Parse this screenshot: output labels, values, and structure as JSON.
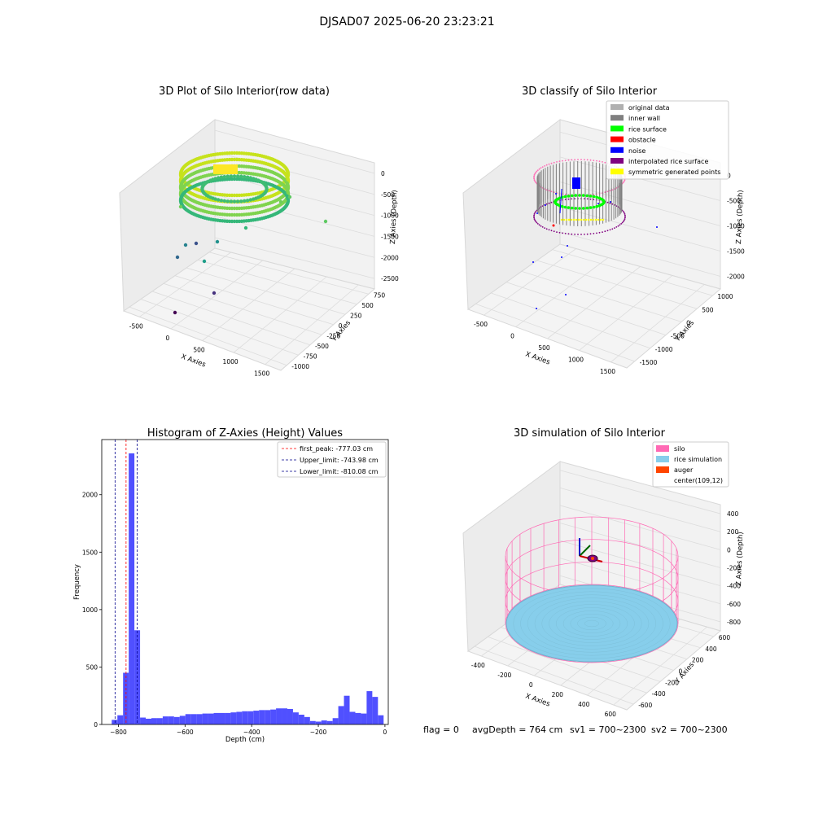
{
  "suptitle": "DJSAD07 2025-06-20 23:23:21",
  "footer": {
    "flag": "flag = 0",
    "avg_depth": "avgDepth = 764 cm",
    "sv1": "sv1 = 700~2300",
    "sv2": "sv2 = 700~2300"
  },
  "colors": {
    "original_data": "#b0b0b0",
    "inner_wall": "#808080",
    "rice_surface": "#00ff00",
    "obstacle": "#ff0000",
    "noise": "#0000ff",
    "interpolated_rice_surface": "#800080",
    "symmetric_generated_points": "#ffff00",
    "silo": "#ff69b4",
    "rice_simulation": "#87ceeb",
    "auger": "#ff4500",
    "hist_bar": "#5050ff",
    "first_peak": "#ff0000",
    "limit": "#00008b"
  },
  "chart_data": [
    {
      "type": "scatter",
      "title": "3D Plot of Silo Interior(row data)",
      "xlabel": "X Axies",
      "ylabel": "Y Axies",
      "zlabel": "Z Axies (Depth)",
      "xticks": [
        "-500",
        "0",
        "500",
        "1000",
        "1500"
      ],
      "yticks": [
        "-1000",
        "-750",
        "-500",
        "-250",
        "0",
        "250",
        "500",
        "750"
      ],
      "zticks": [
        "0",
        "-500",
        "-1000",
        "-1500",
        "-2000",
        "-2500"
      ]
    },
    {
      "type": "scatter",
      "title": "3D classify of Silo Interior",
      "xlabel": "X Axies",
      "ylabel": "Y Axies",
      "zlabel": "Z Axies (Depth)",
      "xticks": [
        "-500",
        "0",
        "500",
        "1000",
        "1500"
      ],
      "yticks": [
        "-1500",
        "-1000",
        "-500",
        "0",
        "500",
        "1000"
      ],
      "zticks": [
        "0",
        "-500",
        "-1000",
        "-1500",
        "-2000"
      ],
      "legend": [
        "original data",
        "inner wall",
        "rice surface",
        "obstacle",
        "noise",
        "interpolated rice surface",
        "symmetric generated points"
      ]
    },
    {
      "type": "bar",
      "title": "Histogram of Z-Axies (Height) Values",
      "xlabel": "Depth (cm)",
      "ylabel": "Frequency",
      "xlim": [
        -850,
        10
      ],
      "ylim": [
        0,
        2480
      ],
      "xticks": [
        -800,
        -600,
        -400,
        -200,
        0
      ],
      "yticks": [
        0,
        500,
        1000,
        1500,
        2000
      ],
      "bin_width": 17,
      "bin_starts": [
        -820,
        -803,
        -786,
        -769,
        -752,
        -735,
        -718,
        -701,
        -684,
        -667,
        -650,
        -633,
        -616,
        -599,
        -582,
        -565,
        -548,
        -531,
        -514,
        -497,
        -480,
        -463,
        -446,
        -429,
        -412,
        -395,
        -378,
        -361,
        -344,
        -327,
        -310,
        -293,
        -276,
        -259,
        -242,
        -225,
        -208,
        -191,
        -174,
        -157,
        -140,
        -123,
        -106,
        -89,
        -72,
        -55,
        -38,
        -21,
        -4
      ],
      "values": [
        40,
        80,
        450,
        2360,
        820,
        60,
        50,
        55,
        55,
        70,
        70,
        65,
        75,
        90,
        90,
        90,
        95,
        95,
        100,
        100,
        100,
        105,
        110,
        115,
        115,
        120,
        125,
        125,
        130,
        140,
        140,
        135,
        105,
        85,
        65,
        30,
        25,
        35,
        30,
        55,
        160,
        250,
        110,
        100,
        95,
        290,
        240,
        80,
        0
      ],
      "vlines": [
        {
          "label": "first_peak: -777.03 cm",
          "x": -777.03,
          "color": "#ff0000"
        },
        {
          "label": "Upper_limit: -743.98 cm",
          "x": -743.98,
          "color": "#00008b"
        },
        {
          "label": "Lower_limit: -810.08 cm",
          "x": -810.08,
          "color": "#00008b"
        }
      ]
    },
    {
      "type": "scatter",
      "title": "3D simulation of Silo Interior",
      "xlabel": "X Axies",
      "ylabel": "Y Axies",
      "zlabel": "Z Axies (Depth)",
      "xticks": [
        "-400",
        "-200",
        "0",
        "200",
        "400",
        "600"
      ],
      "yticks": [
        "-600",
        "-400",
        "-200",
        "0",
        "200",
        "400",
        "600"
      ],
      "zticks": [
        "400",
        "200",
        "0",
        "-200",
        "-400",
        "-600",
        "-800"
      ],
      "legend": [
        "silo",
        "rice simulation",
        "auger",
        "center(109,12)"
      ]
    }
  ]
}
